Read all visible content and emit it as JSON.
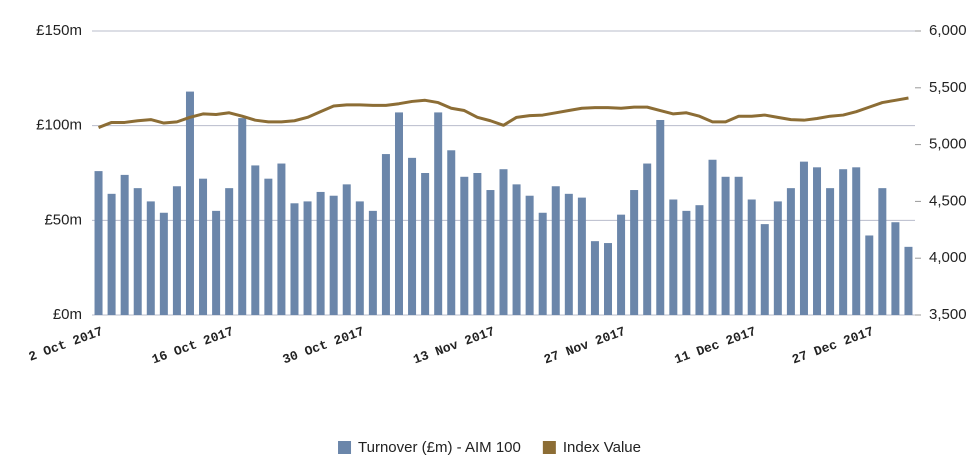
{
  "chart_data": {
    "type": "bar",
    "categories": [
      "2 Oct 2017",
      null,
      null,
      null,
      null,
      null,
      null,
      null,
      null,
      null,
      "16 Oct 2017",
      null,
      null,
      null,
      null,
      null,
      null,
      null,
      null,
      null,
      "30 Oct 2017",
      null,
      null,
      null,
      null,
      null,
      null,
      null,
      null,
      null,
      "13 Nov 2017",
      null,
      null,
      null,
      null,
      null,
      null,
      null,
      null,
      null,
      "27 Nov 2017",
      null,
      null,
      null,
      null,
      null,
      null,
      null,
      null,
      null,
      "11 Dec 2017",
      null,
      null,
      null,
      null,
      null,
      null,
      null,
      null,
      "27 Dec 2017",
      null,
      null,
      null
    ],
    "series": [
      {
        "name": "Turnover (£m) - AIM 100",
        "color": "#6b86aa",
        "type": "bar",
        "values": [
          76,
          64,
          74,
          67,
          60,
          54,
          68,
          118,
          72,
          55,
          67,
          104,
          79,
          72,
          80,
          59,
          60,
          65,
          63,
          69,
          60,
          55,
          85,
          107,
          83,
          75,
          107,
          87,
          73,
          75,
          66,
          77,
          69,
          63,
          54,
          68,
          64,
          62,
          39,
          38,
          53,
          66,
          80,
          103,
          61,
          55,
          58,
          82,
          73,
          73,
          61,
          48,
          60,
          67,
          81,
          78,
          67,
          77,
          78,
          42,
          67,
          49,
          36
        ]
      },
      {
        "name": "Index Value",
        "color": "#8c6d35",
        "type": "line",
        "axis": "y2",
        "values": [
          5150,
          5195,
          5195,
          5210,
          5220,
          5190,
          5200,
          5240,
          5270,
          5265,
          5280,
          5250,
          5215,
          5200,
          5200,
          5210,
          5240,
          5290,
          5340,
          5350,
          5350,
          5345,
          5345,
          5360,
          5380,
          5390,
          5370,
          5320,
          5300,
          5240,
          5210,
          5170,
          5240,
          5255,
          5260,
          5280,
          5300,
          5320,
          5325,
          5325,
          5320,
          5330,
          5330,
          5300,
          5270,
          5280,
          5250,
          5200,
          5200,
          5250,
          5250,
          5260,
          5240,
          5220,
          5215,
          5230,
          5250,
          5260,
          5290,
          5330,
          5370,
          5390,
          5410
        ]
      }
    ],
    "ylim": [
      0,
      150
    ],
    "yticks": [
      {
        "value": 0,
        "label": "£0m"
      },
      {
        "value": 50,
        "label": "£50m"
      },
      {
        "value": 100,
        "label": "£100m"
      },
      {
        "value": 150,
        "label": "£150m"
      }
    ],
    "y2lim": [
      3500,
      6000
    ],
    "y2ticks": [
      {
        "value": 3500,
        "label": "3,500"
      },
      {
        "value": 4000,
        "label": "4,000"
      },
      {
        "value": 4500,
        "label": "4,500"
      },
      {
        "value": 5000,
        "label": "5,000"
      },
      {
        "value": 5500,
        "label": "5,500"
      },
      {
        "value": 6000,
        "label": "6,000"
      }
    ],
    "grid": true,
    "legend": "bottom"
  }
}
